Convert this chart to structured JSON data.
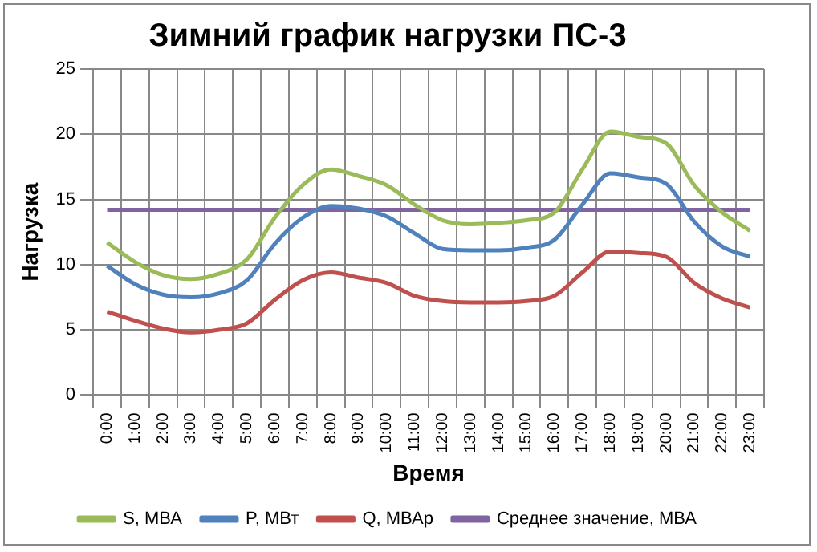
{
  "chart_data": {
    "type": "line",
    "title": "Зимний график нагрузки ПС-3",
    "xlabel": "Время",
    "ylabel": "Нагрузка",
    "categories": [
      "0:00",
      "1:00",
      "2:00",
      "3:00",
      "4:00",
      "5:00",
      "6:00",
      "7:00",
      "8:00",
      "9:00",
      "10:00",
      "11:00",
      "12:00",
      "13:00",
      "14:00",
      "15:00",
      "16:00",
      "17:00",
      "18:00",
      "19:00",
      "20:00",
      "21:00",
      "22:00",
      "23:00"
    ],
    "series": [
      {
        "name": "S, МВА",
        "color": "#9bbb59",
        "values": [
          11.7,
          10.2,
          9.2,
          8.9,
          9.3,
          10.4,
          13.6,
          16.1,
          17.3,
          16.8,
          16.1,
          14.6,
          13.4,
          13.1,
          13.2,
          13.4,
          14.0,
          17.3,
          20.2,
          19.8,
          19.3,
          16.1,
          14.0,
          12.6
        ]
      },
      {
        "name": "P, МВт",
        "color": "#4f81bd",
        "values": [
          9.9,
          8.5,
          7.7,
          7.5,
          7.8,
          8.8,
          11.6,
          13.6,
          14.5,
          14.3,
          13.7,
          12.4,
          11.2,
          11.1,
          11.1,
          11.3,
          11.9,
          14.6,
          17.0,
          16.7,
          16.2,
          13.3,
          11.4,
          10.6
        ]
      },
      {
        "name": "Q, МВАр",
        "color": "#c0504d",
        "values": [
          6.4,
          5.7,
          5.1,
          4.8,
          5.0,
          5.5,
          7.3,
          8.8,
          9.4,
          9.0,
          8.6,
          7.6,
          7.2,
          7.1,
          7.1,
          7.2,
          7.6,
          9.4,
          11.0,
          10.9,
          10.6,
          8.6,
          7.4,
          6.7
        ]
      },
      {
        "name": "Среднее значение, МВА",
        "color": "#8064a2",
        "values": [
          14.2,
          14.2,
          14.2,
          14.2,
          14.2,
          14.2,
          14.2,
          14.2,
          14.2,
          14.2,
          14.2,
          14.2,
          14.2,
          14.2,
          14.2,
          14.2,
          14.2,
          14.2,
          14.2,
          14.2,
          14.2,
          14.2,
          14.2,
          14.2
        ]
      }
    ],
    "ylim": [
      0,
      25
    ],
    "yticks": [
      0,
      5,
      10,
      15,
      20,
      25
    ],
    "grid": true,
    "legend": "bottom",
    "marker": "none",
    "line_style": "solid"
  }
}
